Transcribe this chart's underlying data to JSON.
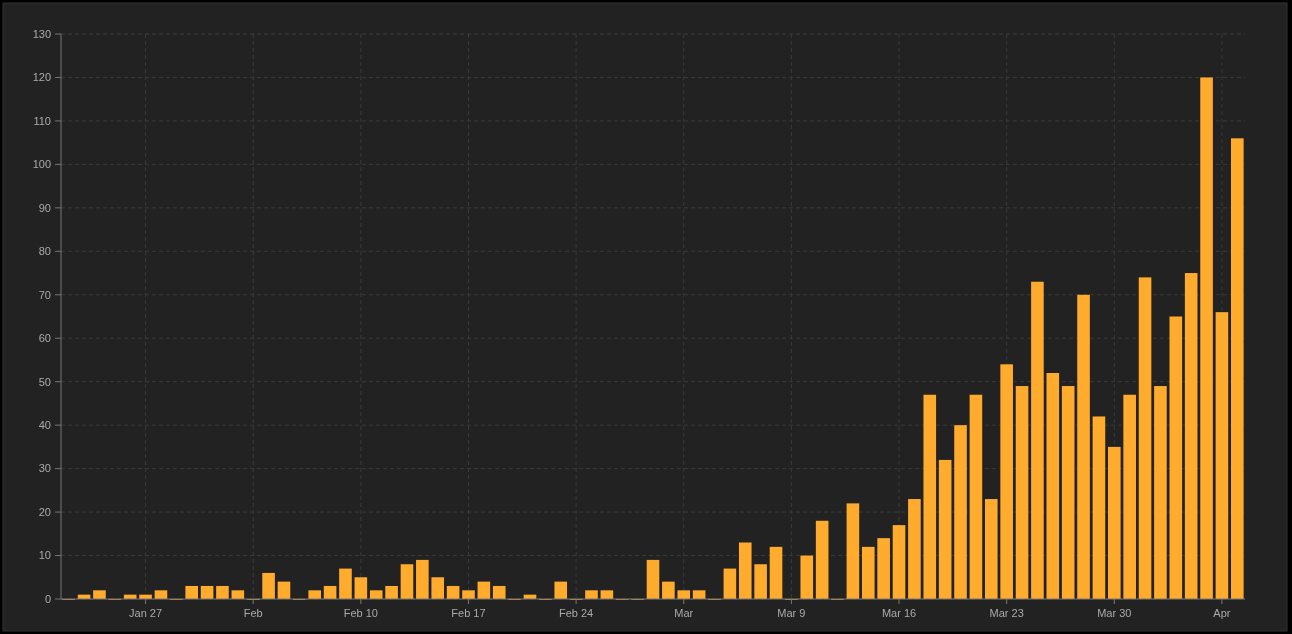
{
  "chart_data": {
    "type": "bar",
    "x": [
      "--01-22",
      "--01-23",
      "--01-24",
      "--01-25",
      "--01-26",
      "--01-27",
      "--01-28",
      "--01-29",
      "--01-30",
      "--01-31",
      "--02-01",
      "--02-02",
      "--02-03",
      "--02-04",
      "--02-05",
      "--02-06",
      "--02-07",
      "--02-08",
      "--02-09",
      "--02-10",
      "--02-11",
      "--02-12",
      "--02-13",
      "--02-14",
      "--02-15",
      "--02-16",
      "--02-17",
      "--02-18",
      "--02-19",
      "--02-20",
      "--02-21",
      "--02-22",
      "--02-23",
      "--02-24",
      "--02-25",
      "--02-26",
      "--02-27",
      "--02-28",
      "--02-29",
      "--03-01",
      "--03-02",
      "--03-03",
      "--03-04",
      "--03-05",
      "--03-06",
      "--03-07",
      "--03-08",
      "--03-09",
      "--03-10",
      "--03-11",
      "--03-12",
      "--03-13",
      "--03-14",
      "--03-15",
      "--03-16",
      "--03-17",
      "--03-18",
      "--03-19",
      "--03-20",
      "--03-21",
      "--03-22",
      "--03-23",
      "--03-24",
      "--03-25",
      "--03-26",
      "--03-27",
      "--03-28",
      "--03-29",
      "--03-30",
      "--03-31",
      "--04-01",
      "--04-02",
      "--04-03",
      "--04-04",
      "--04-05",
      "--04-06",
      "--04-07"
    ],
    "values": [
      0,
      1,
      2,
      0,
      1,
      1,
      2,
      0,
      3,
      3,
      3,
      2,
      0,
      6,
      4,
      0,
      2,
      3,
      7,
      5,
      2,
      3,
      8,
      9,
      5,
      3,
      2,
      4,
      3,
      0,
      1,
      0,
      4,
      0,
      2,
      2,
      0,
      0,
      9,
      4,
      2,
      2,
      0,
      7,
      13,
      8,
      12,
      0,
      10,
      18,
      0,
      22,
      12,
      14,
      17,
      23,
      47,
      32,
      40,
      47,
      23,
      54,
      49,
      73,
      52,
      49,
      70,
      42,
      35,
      47,
      74,
      49,
      65,
      75,
      120,
      66,
      106
    ],
    "color": "#ffab2e",
    "xlim": [
      "--01-21T12:00",
      "--04-07T12:00"
    ],
    "xticks": [
      {
        "value": "--01-27",
        "label": "Jan 27"
      },
      {
        "value": "--02-03",
        "label": "Feb"
      },
      {
        "value": "--02-10",
        "label": "Feb 10"
      },
      {
        "value": "--02-17",
        "label": "Feb 17"
      },
      {
        "value": "--02-24",
        "label": "Feb 24"
      },
      {
        "value": "--03-02",
        "label": "Mar"
      },
      {
        "value": "--03-09",
        "label": "Mar 9"
      },
      {
        "value": "--03-16",
        "label": "Mar 16"
      },
      {
        "value": "--03-23",
        "label": "Mar 23"
      },
      {
        "value": "--03-30",
        "label": "Mar 30"
      },
      {
        "value": "--04-06",
        "label": "Apr"
      }
    ],
    "ylim": [
      0,
      130
    ],
    "yticks": [
      0,
      10,
      20,
      30,
      40,
      50,
      60,
      70,
      80,
      90,
      100,
      110,
      120,
      130
    ],
    "grid": true
  }
}
